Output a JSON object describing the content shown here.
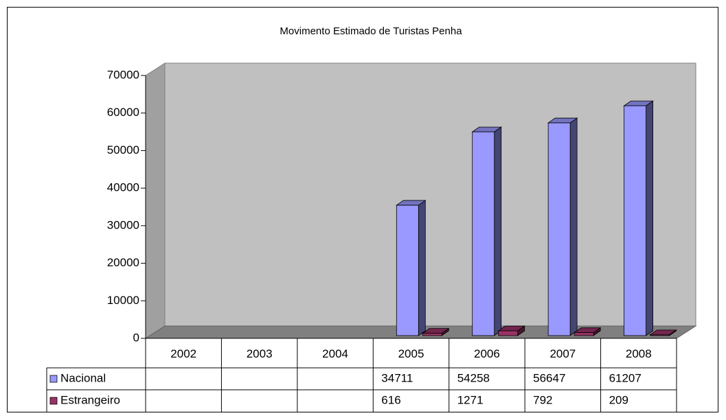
{
  "chart_data": {
    "type": "bar3d",
    "title": "Movimento Estimado de Turistas Penha",
    "categories": [
      "2002",
      "2003",
      "2004",
      "2005",
      "2006",
      "2007",
      "2008"
    ],
    "series": [
      {
        "name": "Nacional",
        "color": "#9999ff",
        "values": [
          null,
          null,
          null,
          34711,
          54258,
          56647,
          61207
        ]
      },
      {
        "name": "Estrangeiro",
        "color": "#993366",
        "values": [
          null,
          null,
          null,
          616,
          1271,
          792,
          209
        ]
      }
    ],
    "ylim": [
      0,
      70000
    ],
    "yticks": [
      0,
      10000,
      20000,
      30000,
      40000,
      50000,
      60000,
      70000
    ],
    "data_table": true
  }
}
